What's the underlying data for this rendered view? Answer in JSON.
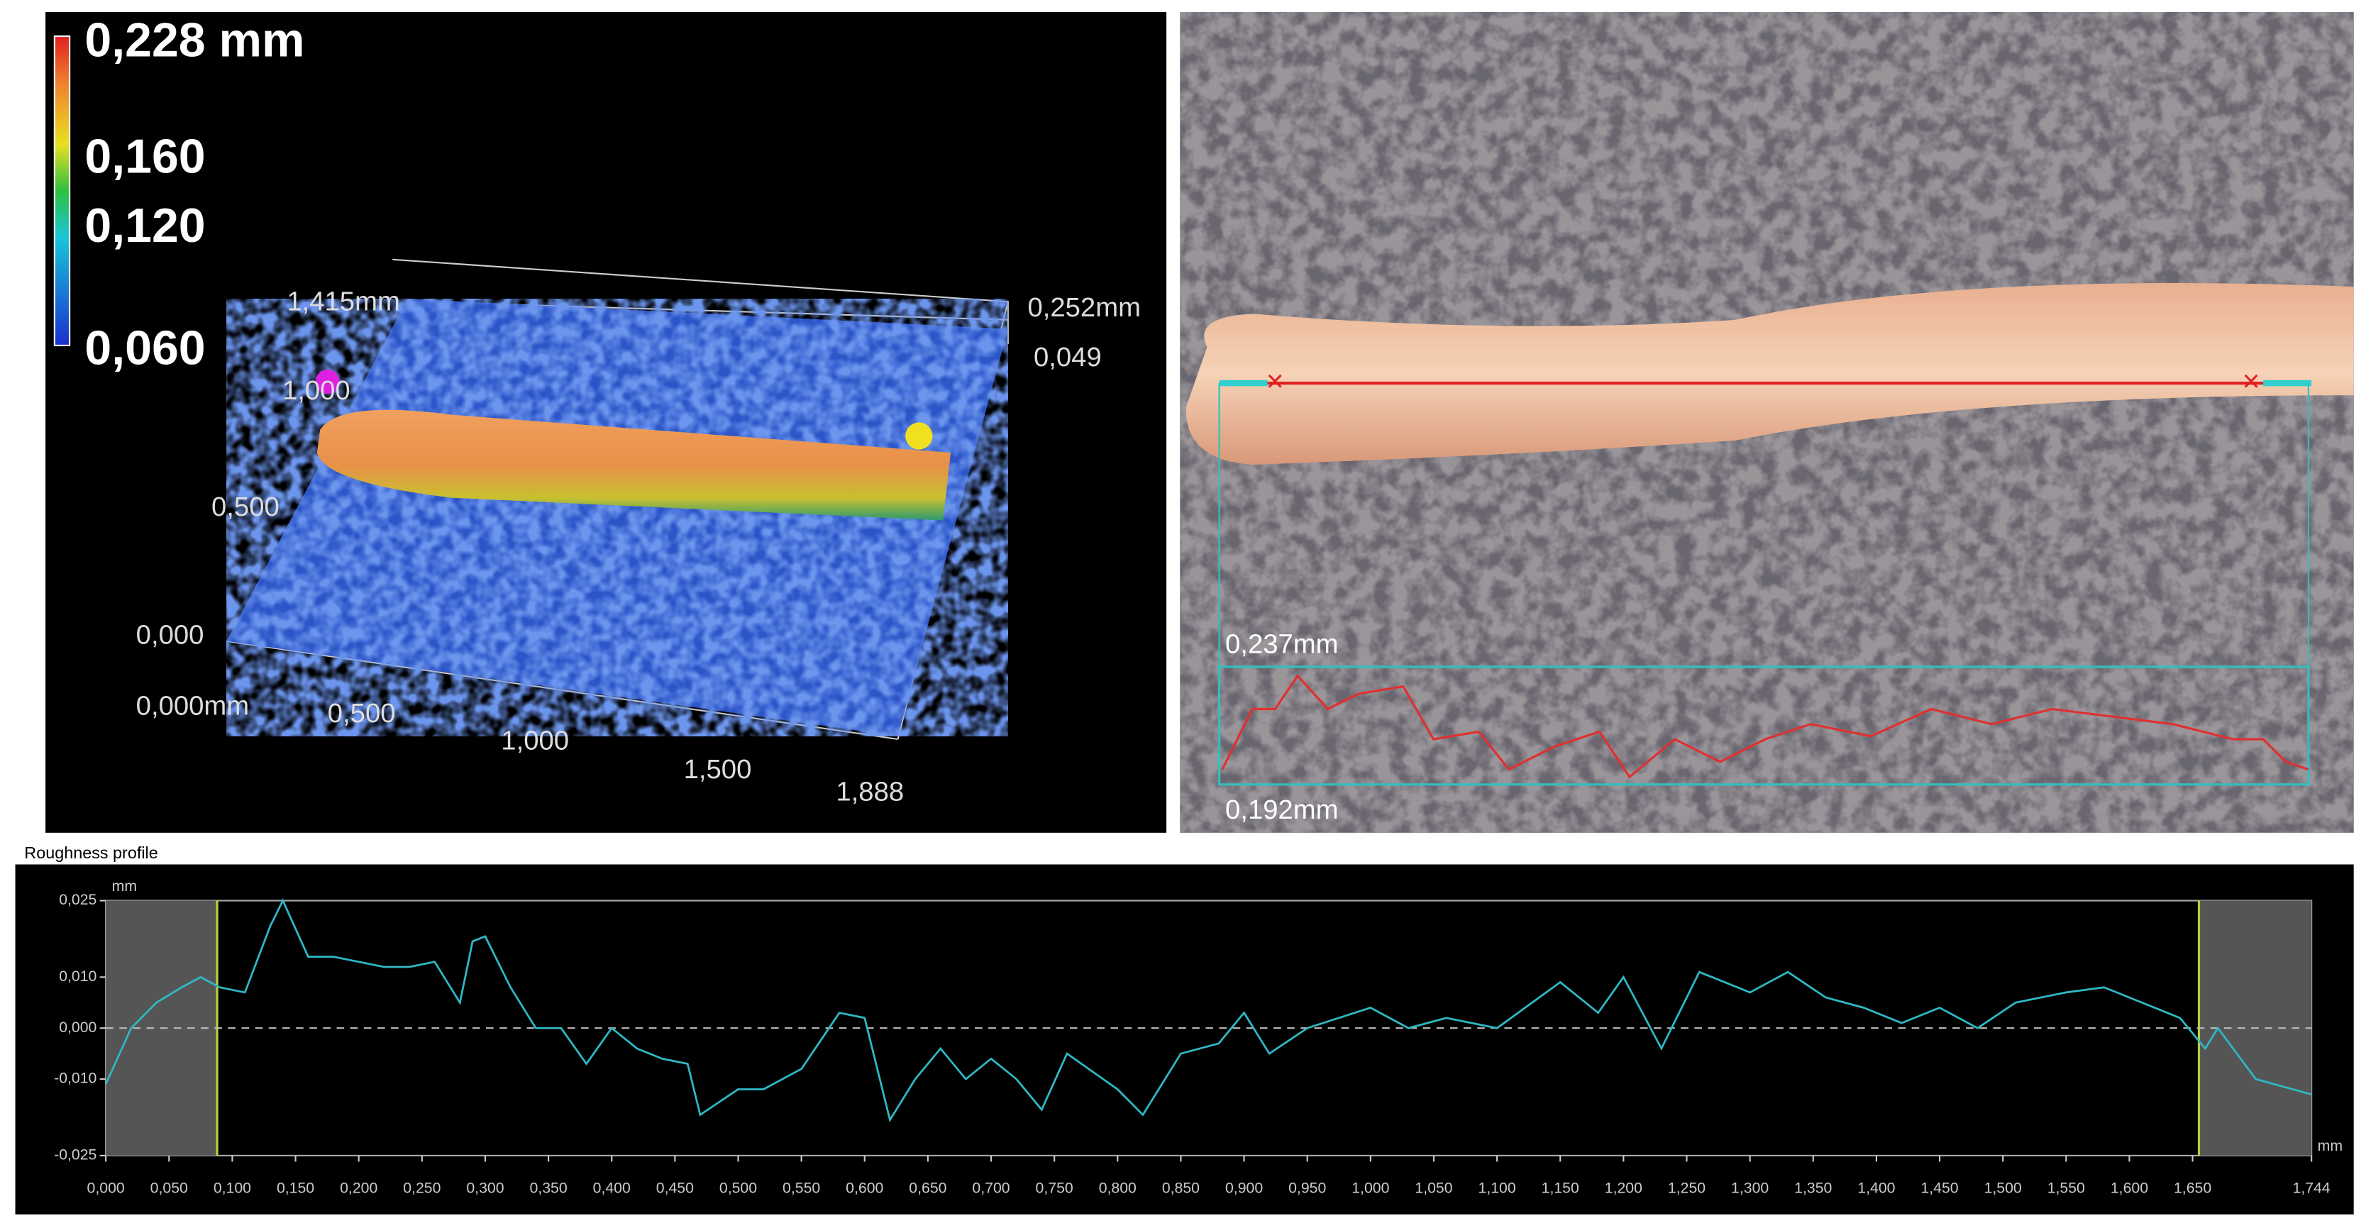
{
  "height_map": {
    "colorbar_labels": [
      "0,228 mm",
      "0,160",
      "0,120",
      "0,060"
    ],
    "axis_labels": [
      "1,415mm",
      "1,000",
      "0,500",
      "0,000",
      "0,000mm",
      "0,500",
      "1,000",
      "1,500",
      "1,888",
      "0,252mm",
      "0,049"
    ]
  },
  "microscope_image": {
    "labels": [
      "0,237mm",
      "0,192mm"
    ]
  },
  "chart_data": {
    "type": "line",
    "title": "Roughness profile",
    "y_unit": "mm",
    "x_unit": "mm",
    "color": "#2fb8c4",
    "x": [
      0,
      0.02,
      0.04,
      0.06,
      0.075,
      0.09,
      0.11,
      0.13,
      0.14,
      0.16,
      0.18,
      0.2,
      0.22,
      0.24,
      0.26,
      0.28,
      0.29,
      0.3,
      0.32,
      0.34,
      0.36,
      0.38,
      0.4,
      0.42,
      0.44,
      0.46,
      0.47,
      0.5,
      0.52,
      0.55,
      0.58,
      0.6,
      0.62,
      0.64,
      0.66,
      0.68,
      0.7,
      0.72,
      0.74,
      0.76,
      0.8,
      0.82,
      0.85,
      0.88,
      0.9,
      0.92,
      0.95,
      1.0,
      1.03,
      1.06,
      1.1,
      1.15,
      1.18,
      1.2,
      1.23,
      1.26,
      1.3,
      1.33,
      1.36,
      1.39,
      1.42,
      1.45,
      1.48,
      1.51,
      1.55,
      1.58,
      1.6,
      1.64,
      1.66,
      1.67,
      1.7,
      1.744
    ],
    "values": [
      -0.011,
      0.0,
      0.005,
      0.008,
      0.01,
      0.008,
      0.007,
      0.02,
      0.025,
      0.014,
      0.014,
      0.013,
      0.012,
      0.012,
      0.013,
      0.005,
      0.017,
      0.018,
      0.008,
      0.0,
      0.0,
      -0.007,
      0.0,
      -0.004,
      -0.006,
      -0.007,
      -0.017,
      -0.012,
      -0.012,
      -0.008,
      0.003,
      0.002,
      -0.018,
      -0.01,
      -0.004,
      -0.01,
      -0.006,
      -0.01,
      -0.016,
      -0.005,
      -0.012,
      -0.017,
      -0.005,
      -0.003,
      0.003,
      -0.005,
      0.0,
      0.004,
      0.0,
      0.002,
      0.0,
      0.009,
      0.003,
      0.01,
      -0.004,
      0.011,
      0.007,
      0.011,
      0.006,
      0.004,
      0.001,
      0.004,
      0.0,
      0.005,
      0.007,
      0.008,
      0.006,
      0.002,
      -0.004,
      0.0,
      -0.01,
      -0.013
    ],
    "excluded_ranges": [
      [
        0,
        0.088
      ],
      [
        1.655,
        1.744
      ]
    ],
    "xlim": [
      0,
      1.744
    ],
    "ylim": [
      -0.025,
      0.025
    ],
    "yticks": [
      {
        "value": 0.025,
        "label": "0,025"
      },
      {
        "value": 0.01,
        "label": "0,010"
      },
      {
        "value": 0,
        "label": "0,000"
      },
      {
        "value": -0.01,
        "label": "-0,010"
      },
      {
        "value": -0.025,
        "label": "-0,025"
      }
    ],
    "xticks": [
      {
        "value": 0,
        "label": "0,000"
      },
      {
        "value": 0.05,
        "label": "0,050"
      },
      {
        "value": 0.1,
        "label": "0,100"
      },
      {
        "value": 0.15,
        "label": "0,150"
      },
      {
        "value": 0.2,
        "label": "0,200"
      },
      {
        "value": 0.25,
        "label": "0,250"
      },
      {
        "value": 0.3,
        "label": "0,300"
      },
      {
        "value": 0.35,
        "label": "0,350"
      },
      {
        "value": 0.4,
        "label": "0,400"
      },
      {
        "value": 0.45,
        "label": "0,450"
      },
      {
        "value": 0.5,
        "label": "0,500"
      },
      {
        "value": 0.55,
        "label": "0,550"
      },
      {
        "value": 0.6,
        "label": "0,600"
      },
      {
        "value": 0.65,
        "label": "0,650"
      },
      {
        "value": 0.7,
        "label": "0,700"
      },
      {
        "value": 0.75,
        "label": "0,750"
      },
      {
        "value": 0.8,
        "label": "0,800"
      },
      {
        "value": 0.85,
        "label": "0,850"
      },
      {
        "value": 0.9,
        "label": "0,900"
      },
      {
        "value": 0.95,
        "label": "0,950"
      },
      {
        "value": 1.0,
        "label": "1,000"
      },
      {
        "value": 1.05,
        "label": "1,050"
      },
      {
        "value": 1.1,
        "label": "1,100"
      },
      {
        "value": 1.15,
        "label": "1,150"
      },
      {
        "value": 1.2,
        "label": "1,200"
      },
      {
        "value": 1.25,
        "label": "1,250"
      },
      {
        "value": 1.3,
        "label": "1,300"
      },
      {
        "value": 1.35,
        "label": "1,350"
      },
      {
        "value": 1.4,
        "label": "1,400"
      },
      {
        "value": 1.45,
        "label": "1,450"
      },
      {
        "value": 1.5,
        "label": "1,500"
      },
      {
        "value": 1.55,
        "label": "1,550"
      },
      {
        "value": 1.6,
        "label": "1,600"
      },
      {
        "value": 1.65,
        "label": "1,650"
      },
      {
        "value": 1.744,
        "label": "1,744"
      }
    ]
  }
}
